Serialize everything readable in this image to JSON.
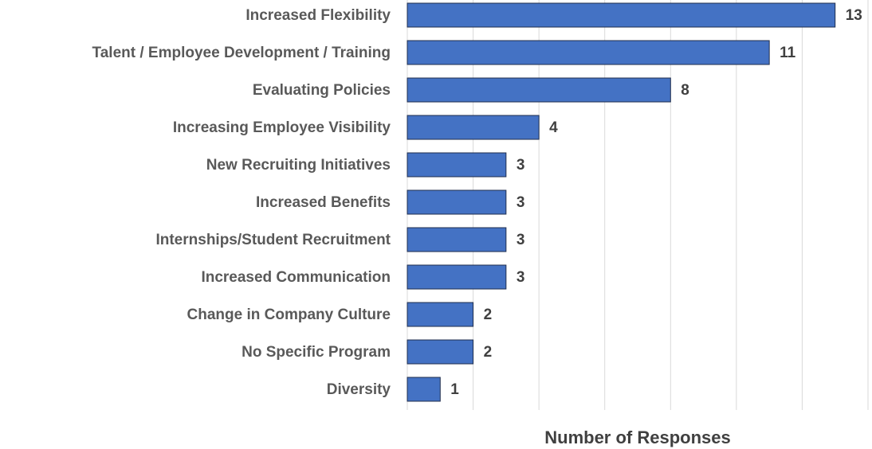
{
  "chart_data": {
    "type": "barh",
    "x_label": "Number of Responses",
    "categories": [
      "Increased Flexibility",
      "Talent / Employee Development / Training",
      "Evaluating Policies",
      "Increasing Employee Visibility",
      "New Recruiting Initiatives",
      "Increased Benefits",
      "Internships/Student Recruitment",
      "Increased Communication",
      "Change in Company Culture",
      "No Specific Program",
      "Diversity"
    ],
    "values": [
      13,
      11,
      8,
      4,
      3,
      3,
      3,
      3,
      2,
      2,
      1
    ],
    "color": "#4472c4",
    "xlim": [
      0,
      14
    ],
    "xticks": [
      0,
      2,
      4,
      6,
      8,
      10,
      12,
      14
    ],
    "grid": true
  }
}
